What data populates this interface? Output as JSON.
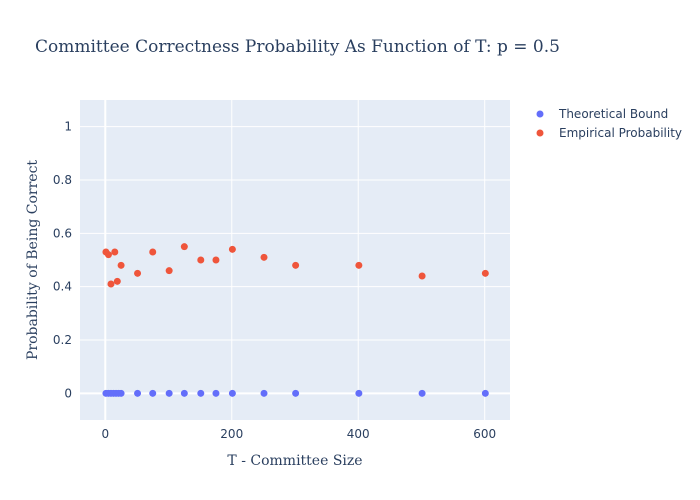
{
  "chart_data": {
    "type": "scatter",
    "title": "Committee Correctness Probability As Function of  T: p = 0.5",
    "xlabel": "T - Committee Size",
    "ylabel": "Probability of Being Correct",
    "xlim": [
      -40,
      640
    ],
    "ylim": [
      -0.1,
      1.1
    ],
    "x_ticks": [
      "0",
      "200",
      "400",
      "600"
    ],
    "y_ticks": [
      "0",
      "0.2",
      "0.4",
      "0.6",
      "0.8",
      "1"
    ],
    "grid": true,
    "legend_position": "top-right",
    "series": [
      {
        "name": "Theoretical Bound",
        "color": "#636efa",
        "x": [
          1,
          5,
          9,
          13,
          17,
          21,
          25,
          51,
          75,
          101,
          125,
          151,
          175,
          201,
          251,
          301,
          401,
          501,
          601
        ],
        "y": [
          0,
          0,
          0,
          0,
          0,
          0,
          0,
          0,
          0,
          0,
          0,
          0,
          0,
          0,
          0,
          0,
          0,
          0,
          0
        ]
      },
      {
        "name": "Empirical Probability",
        "color": "#ef553b",
        "x": [
          1,
          5,
          9,
          15,
          19,
          25,
          51,
          75,
          101,
          125,
          151,
          175,
          201,
          251,
          301,
          401,
          501,
          601
        ],
        "y": [
          0.53,
          0.52,
          0.41,
          0.53,
          0.42,
          0.48,
          0.45,
          0.53,
          0.46,
          0.55,
          0.5,
          0.5,
          0.54,
          0.51,
          0.48,
          0.48,
          0.44,
          0.45
        ]
      }
    ]
  }
}
